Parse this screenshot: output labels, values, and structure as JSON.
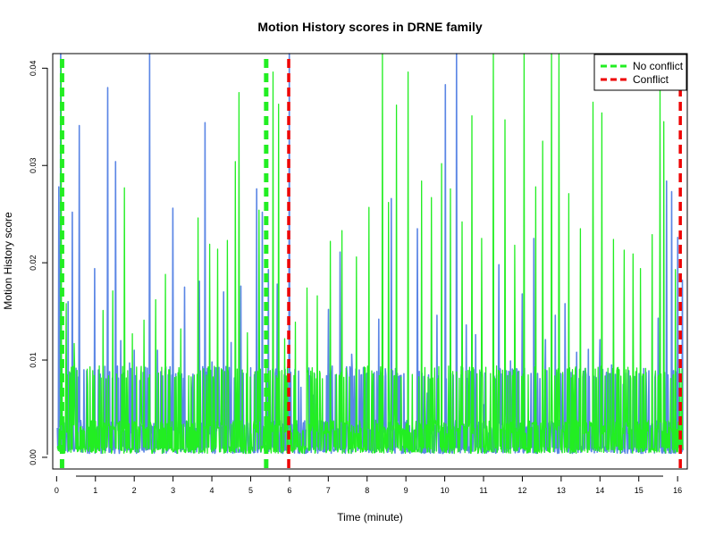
{
  "chart_data": {
    "type": "line",
    "title": "Motion History scores in DRNE family",
    "xlabel": "Time (minute)",
    "ylabel": "Motion History score",
    "xlim": [
      -0.1,
      16.25
    ],
    "ylim": [
      -0.0012,
      0.0415
    ],
    "x_ticks": [
      0,
      1,
      2,
      3,
      4,
      5,
      6,
      7,
      8,
      9,
      10,
      11,
      12,
      13,
      14,
      15,
      16
    ],
    "y_ticks": [
      0.0,
      0.01,
      0.02,
      0.03,
      0.04
    ],
    "y_tick_labels": [
      "0.00",
      "0.01",
      "0.02",
      "0.03",
      "0.04"
    ],
    "grid": false,
    "legend_position": "top-right",
    "colors": {
      "series_a": "#5b86e5",
      "series_b": "#22ee22",
      "no_conflict": "#22ee22",
      "conflict": "#ee0000"
    },
    "series": [
      {
        "color": "#5b86e5",
        "peaks": [
          [
            0.05,
            0.0278
          ],
          [
            0.1,
            0.0415
          ],
          [
            0.3,
            0.016
          ],
          [
            0.4,
            0.0252
          ],
          [
            0.58,
            0.0341
          ],
          [
            0.7,
            0.009
          ],
          [
            0.98,
            0.0194
          ],
          [
            1.1,
            0.008
          ],
          [
            1.32,
            0.038
          ],
          [
            1.52,
            0.0304
          ],
          [
            1.65,
            0.012
          ],
          [
            1.88,
            0.0097
          ],
          [
            2.0,
            0.011
          ],
          [
            2.15,
            0.0079
          ],
          [
            2.4,
            0.0415
          ],
          [
            2.6,
            0.011
          ],
          [
            2.82,
            0.0093
          ],
          [
            3.0,
            0.0256
          ],
          [
            3.3,
            0.0175
          ],
          [
            3.5,
            0.0071
          ],
          [
            3.68,
            0.0181
          ],
          [
            3.82,
            0.0344
          ],
          [
            4.0,
            0.0098
          ],
          [
            4.3,
            0.017
          ],
          [
            4.5,
            0.0118
          ],
          [
            4.75,
            0.0176
          ],
          [
            5.0,
            0.0092
          ],
          [
            5.15,
            0.0276
          ],
          [
            5.3,
            0.0252
          ],
          [
            5.45,
            0.0193
          ],
          [
            5.68,
            0.0178
          ],
          [
            6.0,
            0.0415
          ],
          [
            6.3,
            0.0072
          ],
          [
            6.6,
            0.0064
          ],
          [
            7.0,
            0.0152
          ],
          [
            7.3,
            0.0211
          ],
          [
            7.6,
            0.0106
          ],
          [
            7.95,
            0.0077
          ],
          [
            8.3,
            0.0142
          ],
          [
            8.62,
            0.0266
          ],
          [
            8.95,
            0.0086
          ],
          [
            9.3,
            0.0235
          ],
          [
            9.55,
            0.0066
          ],
          [
            9.8,
            0.0146
          ],
          [
            10.02,
            0.0383
          ],
          [
            10.3,
            0.0415
          ],
          [
            10.55,
            0.0136
          ],
          [
            10.8,
            0.0126
          ],
          [
            11.0,
            0.0054
          ],
          [
            11.4,
            0.0198
          ],
          [
            11.7,
            0.0099
          ],
          [
            12.0,
            0.0168
          ],
          [
            12.3,
            0.0225
          ],
          [
            12.6,
            0.0121
          ],
          [
            12.85,
            0.0146
          ],
          [
            13.1,
            0.0158
          ],
          [
            13.4,
            0.0108
          ],
          [
            13.7,
            0.0111
          ],
          [
            14.0,
            0.0121
          ],
          [
            14.3,
            0.0095
          ],
          [
            14.6,
            0.0075
          ],
          [
            14.9,
            0.0083
          ],
          [
            15.2,
            0.0063
          ],
          [
            15.5,
            0.0143
          ],
          [
            15.72,
            0.0284
          ],
          [
            15.85,
            0.0273
          ],
          [
            16.0,
            0.0226
          ],
          [
            16.12,
            0.0182
          ]
        ]
      },
      {
        "color": "#22ee22",
        "peaks": [
          [
            0.12,
            0.0401
          ],
          [
            0.25,
            0.0158
          ],
          [
            0.45,
            0.0117
          ],
          [
            0.8,
            0.0074
          ],
          [
            1.2,
            0.0151
          ],
          [
            1.45,
            0.0171
          ],
          [
            1.75,
            0.0277
          ],
          [
            1.95,
            0.0127
          ],
          [
            2.25,
            0.0141
          ],
          [
            2.55,
            0.0162
          ],
          [
            2.8,
            0.0188
          ],
          [
            3.2,
            0.0132
          ],
          [
            3.65,
            0.0246
          ],
          [
            3.95,
            0.0219
          ],
          [
            4.15,
            0.0214
          ],
          [
            4.4,
            0.0223
          ],
          [
            4.6,
            0.0304
          ],
          [
            4.7,
            0.0375
          ],
          [
            4.92,
            0.0128
          ],
          [
            5.22,
            0.0254
          ],
          [
            5.58,
            0.0396
          ],
          [
            5.72,
            0.0363
          ],
          [
            5.88,
            0.0122
          ],
          [
            6.15,
            0.0139
          ],
          [
            6.45,
            0.0174
          ],
          [
            6.72,
            0.0166
          ],
          [
            7.05,
            0.0222
          ],
          [
            7.35,
            0.0233
          ],
          [
            7.72,
            0.0206
          ],
          [
            8.05,
            0.0257
          ],
          [
            8.4,
            0.0415
          ],
          [
            8.55,
            0.0262
          ],
          [
            8.75,
            0.0362
          ],
          [
            9.05,
            0.0396
          ],
          [
            9.4,
            0.0284
          ],
          [
            9.65,
            0.0267
          ],
          [
            9.92,
            0.0302
          ],
          [
            10.15,
            0.0276
          ],
          [
            10.45,
            0.0242
          ],
          [
            10.7,
            0.0351
          ],
          [
            10.95,
            0.0225
          ],
          [
            11.25,
            0.0415
          ],
          [
            11.55,
            0.0347
          ],
          [
            11.8,
            0.0218
          ],
          [
            12.05,
            0.0415
          ],
          [
            12.35,
            0.0278
          ],
          [
            12.52,
            0.0325
          ],
          [
            12.75,
            0.0415
          ],
          [
            12.95,
            0.0415
          ],
          [
            13.2,
            0.0271
          ],
          [
            13.5,
            0.0235
          ],
          [
            13.82,
            0.0365
          ],
          [
            14.05,
            0.0354
          ],
          [
            14.35,
            0.0224
          ],
          [
            14.62,
            0.0213
          ],
          [
            14.85,
            0.0209
          ],
          [
            15.05,
            0.0194
          ],
          [
            15.35,
            0.0229
          ],
          [
            15.55,
            0.0381
          ],
          [
            15.65,
            0.0345
          ],
          [
            15.95,
            0.0193
          ],
          [
            16.15,
            0.0184
          ]
        ]
      }
    ],
    "vlines": [
      {
        "x": 0.14,
        "color": "#22ee22"
      },
      {
        "x": 5.4,
        "color": "#22ee22"
      },
      {
        "x": 5.98,
        "color": "#ee0000"
      },
      {
        "x": 16.07,
        "color": "#ee0000"
      }
    ],
    "legend": [
      {
        "label": "No conflict",
        "color": "#22ee22"
      },
      {
        "label": "Conflict",
        "color": "#ee0000"
      }
    ]
  }
}
